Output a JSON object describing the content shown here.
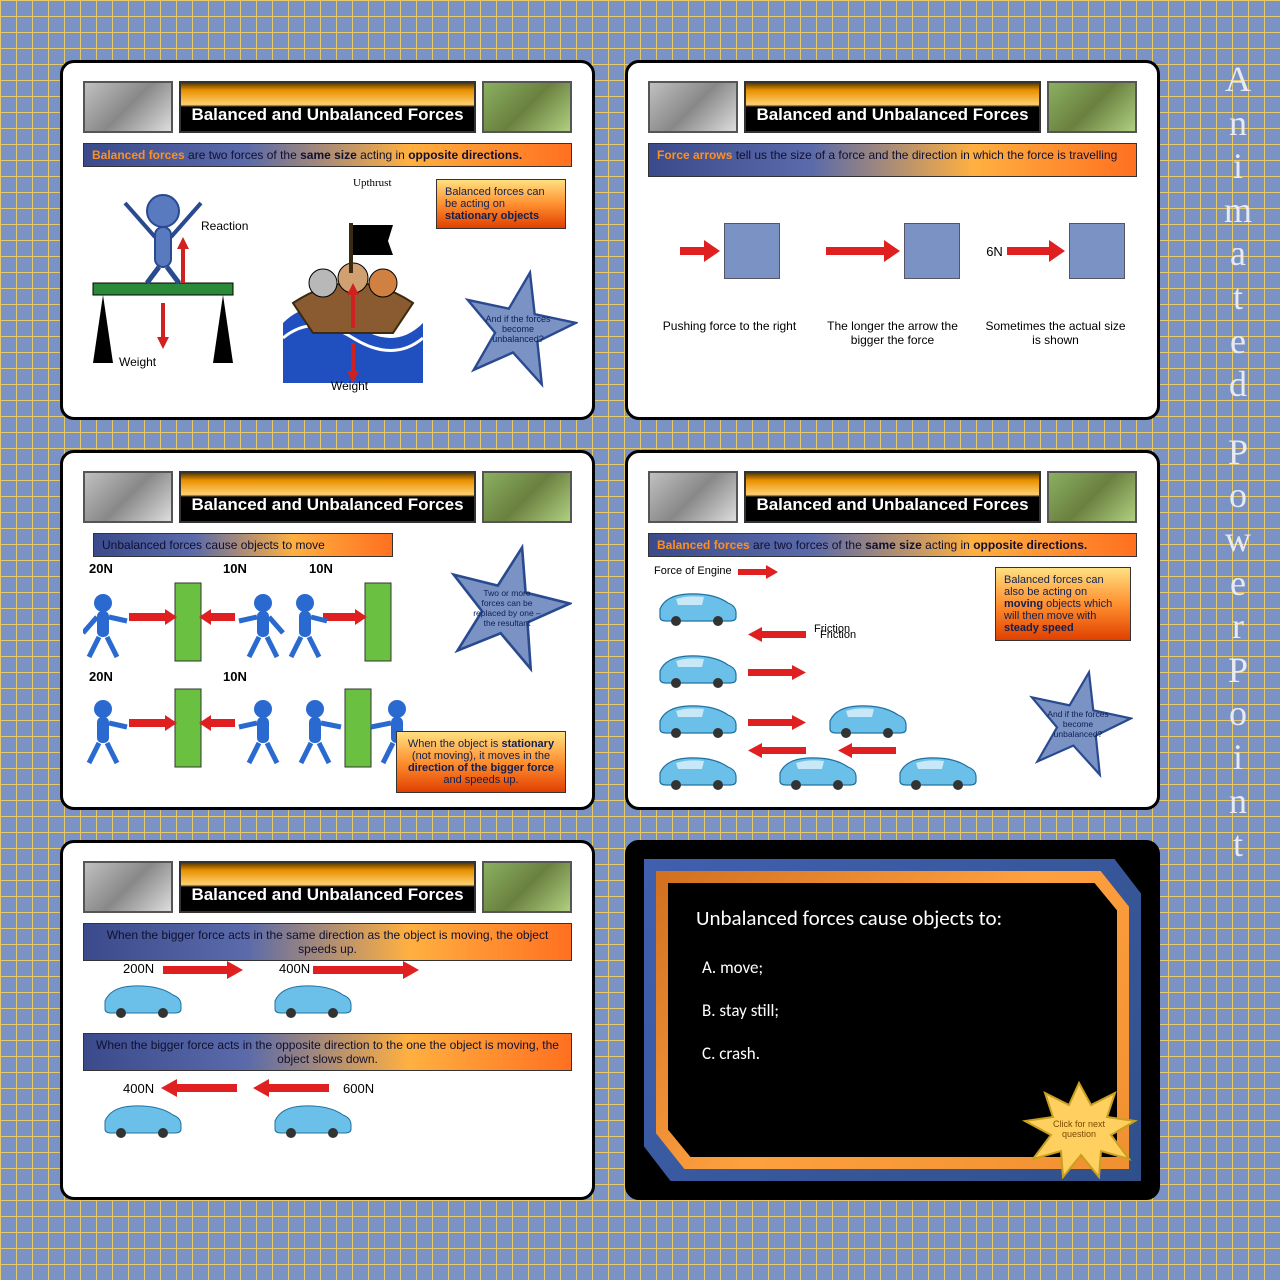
{
  "side_label": "Animated PowerPoint",
  "colors": {
    "bg_blue": "#7a93c4",
    "grid_line": "#e8c968",
    "arrow_red": "#e02020",
    "block_blue": "#7a93c4",
    "wall_green": "#6ac040",
    "car_blue": "#6ac0e8",
    "star_blue": "#7a93c4",
    "gradient_title": [
      "#5a3a00",
      "#e89000",
      "#ffd070",
      "#000000"
    ],
    "gradient_sub": [
      "#3a4a8a",
      "#5a6aaa",
      "#ffb040",
      "#ff7020"
    ],
    "gradient_info": [
      "#ffe080",
      "#ff9030",
      "#e04000"
    ]
  },
  "slides": [
    {
      "title": "Balanced and Unbalanced Forces",
      "subtitle_pre": "Balanced forces",
      "subtitle_mid": " are two forces of the ",
      "subtitle_b1": "same size",
      "subtitle_mid2": " acting in ",
      "subtitle_b2": "opposite directions.",
      "labels": {
        "reaction": "Reaction",
        "weight": "Weight"
      },
      "info": "Balanced forces can be acting on stationary objects",
      "star": "And if the forces become unbalanced?"
    },
    {
      "title": "Balanced and Unbalanced Forces",
      "subtitle_pre": "Force arrows",
      "subtitle_rest": " tell us the size of a force and the direction in which the force is travelling",
      "arrows": [
        {
          "len": 30,
          "caption": "Pushing force to the right",
          "label": ""
        },
        {
          "len": 60,
          "caption": "The longer the arrow the bigger the force",
          "label": ""
        },
        {
          "len": 50,
          "caption": "Sometimes the actual size is shown",
          "label": "6N"
        }
      ]
    },
    {
      "title": "Balanced and Unbalanced Forces",
      "subtitle": "Unbalanced forces cause objects to move",
      "n": {
        "l1": "20N",
        "r1": "10N",
        "l2": "10N",
        "l3": "20N",
        "r3": "10N"
      },
      "star": "Two or more forces can be replaced by one – the resultant",
      "info_pre": "When the object is ",
      "info_b1": "stationary",
      "info_mid": " (not moving), it moves in the ",
      "info_b2": "direction of the bigger force",
      "info_end": " and speeds up."
    },
    {
      "title": "Balanced and Unbalanced Forces",
      "subtitle_pre": "Balanced forces",
      "subtitle_mid": " are two forces of the ",
      "subtitle_b1": "same size",
      "subtitle_mid2": " acting in ",
      "subtitle_b2": "opposite directions.",
      "engine": "Force of Engine",
      "friction": "Friction",
      "info": "Balanced forces can also be acting on moving objects which will then move with steady speed",
      "star": "And if the forces become unbalanced?"
    },
    {
      "title": "Balanced and Unbalanced Forces",
      "sub1": "When the bigger force acts in the same direction as the object is moving, the object speeds up.",
      "n1a": "200N",
      "n1b": "400N",
      "sub2": "When the bigger force acts in the opposite direction to the one the object is moving, the object slows down.",
      "n2a": "400N",
      "n2b": "600N"
    },
    {
      "question": "Unbalanced forces cause objects to:",
      "opts": [
        "A.   move;",
        "B.   stay still;",
        "C.   crash."
      ],
      "next": "Click for next question"
    }
  ]
}
